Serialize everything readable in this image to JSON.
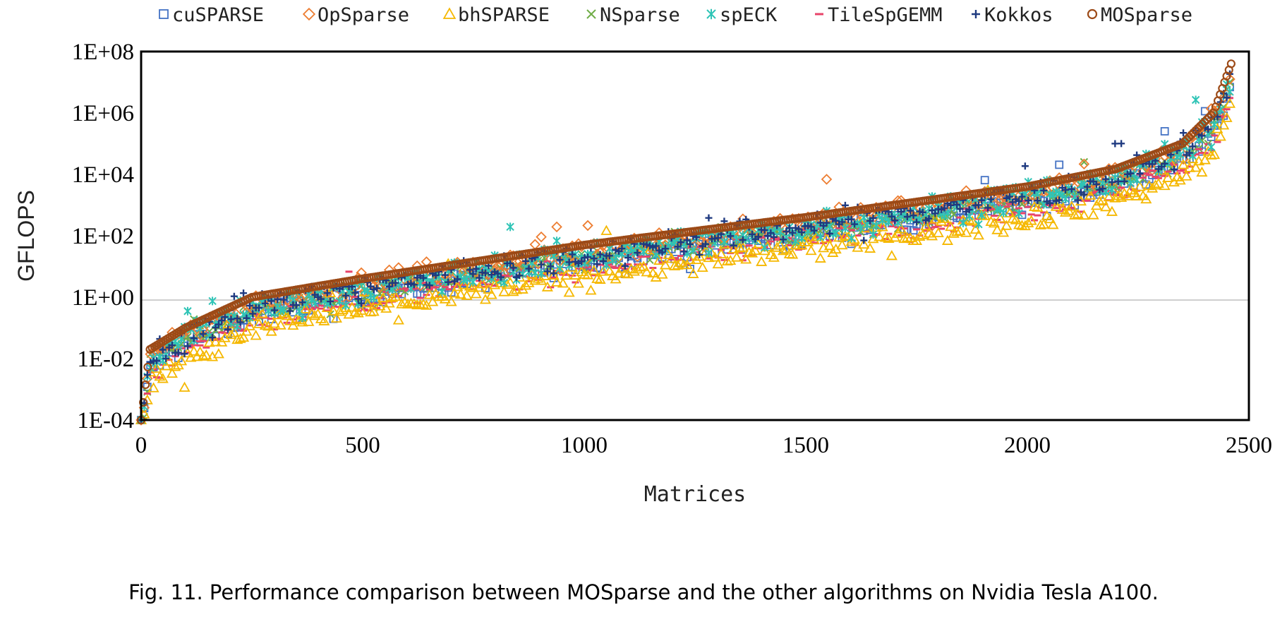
{
  "caption": "Fig. 11.  Performance comparison between MOSparse and the other algorithms on Nvidia Tesla A100.",
  "chart_data": {
    "type": "scatter",
    "title": "",
    "xlabel": "Matrices",
    "ylabel": "GFLOPS",
    "x_ticks": [
      "0",
      "500",
      "1000",
      "1500",
      "2000",
      "2500"
    ],
    "y_ticks": [
      "1E-04",
      "1E-02",
      "1E+00",
      "1E+02",
      "1E+04",
      "1E+06",
      "1E+08"
    ],
    "xlim": [
      0,
      2500
    ],
    "ylim_log10": [
      -4,
      8
    ],
    "y_scale": "log",
    "grid": "horizontal line at 1E+00 only",
    "legend_position": "top",
    "n_matrices": 2460,
    "series": [
      {
        "name": "cuSPARSE",
        "marker": "square",
        "color": "#4472C4",
        "offset_log10": -0.55,
        "spread": 0.35
      },
      {
        "name": "OpSparse",
        "marker": "diamond",
        "color": "#ED7D31",
        "offset_log10": -0.2,
        "spread": 0.35
      },
      {
        "name": "bhSPARSE",
        "marker": "triangle",
        "color": "#F5B800",
        "offset_log10": -1.0,
        "spread": 0.4
      },
      {
        "name": "NSparse",
        "marker": "x",
        "color": "#70AD47",
        "offset_log10": -0.45,
        "spread": 0.35
      },
      {
        "name": "spECK",
        "marker": "asterisk",
        "color": "#2EC4B6",
        "offset_log10": -0.35,
        "spread": 0.45
      },
      {
        "name": "TileSpGEMM",
        "marker": "dash",
        "color": "#E8436A",
        "offset_log10": -0.75,
        "spread": 0.35
      },
      {
        "name": "Kokkos",
        "marker": "plus",
        "color": "#1F3A80",
        "offset_log10": -0.3,
        "spread": 0.45
      },
      {
        "name": "MOSparse",
        "marker": "circle",
        "color": "#9C4A17",
        "offset_log10": 0.0,
        "spread": 0.0
      }
    ],
    "mosparse_curve_anchors": [
      {
        "x": 0,
        "y": "1E-04"
      },
      {
        "x": 20,
        "y": "2E-02"
      },
      {
        "x": 100,
        "y": "1E-01"
      },
      {
        "x": 250,
        "y": "1E+00"
      },
      {
        "x": 500,
        "y": "4E+00"
      },
      {
        "x": 1000,
        "y": "5E+01"
      },
      {
        "x": 1500,
        "y": "4E+02"
      },
      {
        "x": 2000,
        "y": "4E+03"
      },
      {
        "x": 2200,
        "y": "1.5E+04"
      },
      {
        "x": 2350,
        "y": "1E+05"
      },
      {
        "x": 2420,
        "y": "1E+06"
      },
      {
        "x": 2460,
        "y": "4E+07"
      }
    ]
  }
}
